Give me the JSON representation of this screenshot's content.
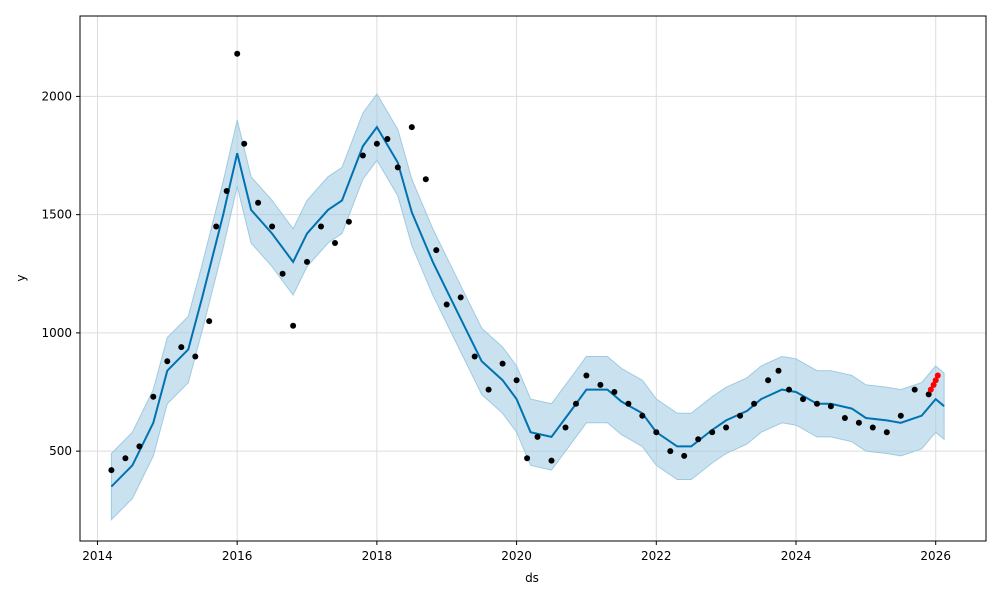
{
  "chart_data": {
    "type": "line",
    "xlabel": "ds",
    "ylabel": "y",
    "xlim": [
      2013.75,
      2026.72
    ],
    "ylim": [
      120,
      2340
    ],
    "grid": true,
    "x_ticks": [
      "2014",
      "2016",
      "2018",
      "2020",
      "2022",
      "2024",
      "2026"
    ],
    "y_ticks": [
      "500",
      "1000",
      "1500",
      "2000"
    ],
    "colors": {
      "observed": "#000000",
      "forecast_line": "#0072B2",
      "uncertainty_band": "#9ecae1",
      "recent_points": "#ff0000",
      "grid": "#dddddd"
    },
    "series": [
      {
        "role": "forecast",
        "x": [
          2014.2,
          2014.5,
          2014.8,
          2015.0,
          2015.3,
          2015.5,
          2015.8,
          2016.0,
          2016.2,
          2016.5,
          2016.8,
          2017.0,
          2017.3,
          2017.5,
          2017.8,
          2018.0,
          2018.3,
          2018.5,
          2018.8,
          2019.0,
          2019.3,
          2019.5,
          2019.8,
          2020.0,
          2020.2,
          2020.5,
          2020.8,
          2021.0,
          2021.3,
          2021.5,
          2021.8,
          2022.0,
          2022.3,
          2022.5,
          2022.8,
          2023.0,
          2023.3,
          2023.5,
          2023.8,
          2024.0,
          2024.3,
          2024.5,
          2024.8,
          2025.0,
          2025.3,
          2025.5,
          2025.8,
          2026.0,
          2026.12
        ],
        "y": [
          350,
          440,
          620,
          840,
          930,
          1150,
          1500,
          1760,
          1520,
          1420,
          1300,
          1420,
          1520,
          1560,
          1790,
          1870,
          1720,
          1510,
          1300,
          1180,
          1000,
          880,
          800,
          720,
          580,
          560,
          680,
          760,
          760,
          710,
          660,
          580,
          520,
          520,
          590,
          630,
          670,
          720,
          760,
          750,
          700,
          700,
          680,
          640,
          630,
          620,
          650,
          720,
          690
        ]
      },
      {
        "role": "uncertainty_upper",
        "x": [
          2014.2,
          2014.5,
          2014.8,
          2015.0,
          2015.3,
          2015.5,
          2015.8,
          2016.0,
          2016.2,
          2016.5,
          2016.8,
          2017.0,
          2017.3,
          2017.5,
          2017.8,
          2018.0,
          2018.3,
          2018.5,
          2018.8,
          2019.0,
          2019.3,
          2019.5,
          2019.8,
          2020.0,
          2020.2,
          2020.5,
          2020.8,
          2021.0,
          2021.3,
          2021.5,
          2021.8,
          2022.0,
          2022.3,
          2022.5,
          2022.8,
          2023.0,
          2023.3,
          2023.5,
          2023.8,
          2024.0,
          2024.3,
          2024.5,
          2024.8,
          2025.0,
          2025.3,
          2025.5,
          2025.8,
          2026.0,
          2026.12
        ],
        "y": [
          490,
          580,
          760,
          980,
          1070,
          1290,
          1640,
          1900,
          1660,
          1560,
          1440,
          1560,
          1660,
          1700,
          1930,
          2010,
          1860,
          1650,
          1440,
          1320,
          1140,
          1020,
          940,
          860,
          720,
          700,
          820,
          900,
          900,
          850,
          800,
          720,
          660,
          660,
          730,
          770,
          810,
          860,
          900,
          890,
          840,
          840,
          820,
          780,
          770,
          760,
          790,
          860,
          830
        ]
      },
      {
        "role": "uncertainty_lower",
        "x": [
          2014.2,
          2014.5,
          2014.8,
          2015.0,
          2015.3,
          2015.5,
          2015.8,
          2016.0,
          2016.2,
          2016.5,
          2016.8,
          2017.0,
          2017.3,
          2017.5,
          2017.8,
          2018.0,
          2018.3,
          2018.5,
          2018.8,
          2019.0,
          2019.3,
          2019.5,
          2019.8,
          2020.0,
          2020.2,
          2020.5,
          2020.8,
          2021.0,
          2021.3,
          2021.5,
          2021.8,
          2022.0,
          2022.3,
          2022.5,
          2022.8,
          2023.0,
          2023.3,
          2023.5,
          2023.8,
          2024.0,
          2024.3,
          2024.5,
          2024.8,
          2025.0,
          2025.3,
          2025.5,
          2025.8,
          2026.0,
          2026.12
        ],
        "y": [
          210,
          300,
          480,
          700,
          790,
          1010,
          1360,
          1620,
          1380,
          1280,
          1160,
          1280,
          1380,
          1420,
          1650,
          1730,
          1580,
          1370,
          1160,
          1040,
          860,
          740,
          660,
          580,
          440,
          420,
          540,
          620,
          620,
          570,
          520,
          440,
          380,
          380,
          450,
          490,
          530,
          580,
          620,
          610,
          560,
          560,
          540,
          500,
          490,
          480,
          510,
          580,
          550
        ]
      },
      {
        "role": "observed",
        "x": [
          2014.2,
          2014.4,
          2014.6,
          2014.8,
          2015.0,
          2015.2,
          2015.4,
          2015.6,
          2015.7,
          2015.85,
          2016.0,
          2016.1,
          2016.3,
          2016.5,
          2016.65,
          2016.8,
          2017.0,
          2017.2,
          2017.4,
          2017.6,
          2017.8,
          2018.0,
          2018.15,
          2018.3,
          2018.5,
          2018.7,
          2018.85,
          2019.0,
          2019.2,
          2019.4,
          2019.6,
          2019.8,
          2020.0,
          2020.15,
          2020.3,
          2020.5,
          2020.7,
          2020.85,
          2021.0,
          2021.2,
          2021.4,
          2021.6,
          2021.8,
          2022.0,
          2022.2,
          2022.4,
          2022.6,
          2022.8,
          2023.0,
          2023.2,
          2023.4,
          2023.6,
          2023.75,
          2023.9,
          2024.1,
          2024.3,
          2024.5,
          2024.7,
          2024.9,
          2025.1,
          2025.3,
          2025.5,
          2025.7,
          2025.9
        ],
        "y": [
          420,
          470,
          520,
          730,
          880,
          940,
          900,
          1050,
          1450,
          1600,
          2180,
          1800,
          1550,
          1450,
          1250,
          1030,
          1300,
          1450,
          1380,
          1470,
          1750,
          1800,
          1820,
          1700,
          1870,
          1650,
          1350,
          1120,
          1150,
          900,
          760,
          870,
          800,
          470,
          560,
          460,
          600,
          700,
          820,
          780,
          750,
          700,
          650,
          580,
          500,
          480,
          550,
          580,
          600,
          650,
          700,
          800,
          840,
          760,
          720,
          700,
          690,
          640,
          620,
          600,
          580,
          650,
          760,
          740
        ]
      },
      {
        "role": "recent",
        "x": [
          2025.93,
          2025.97,
          2026.0,
          2026.03
        ],
        "y": [
          760,
          780,
          800,
          820
        ]
      }
    ]
  }
}
